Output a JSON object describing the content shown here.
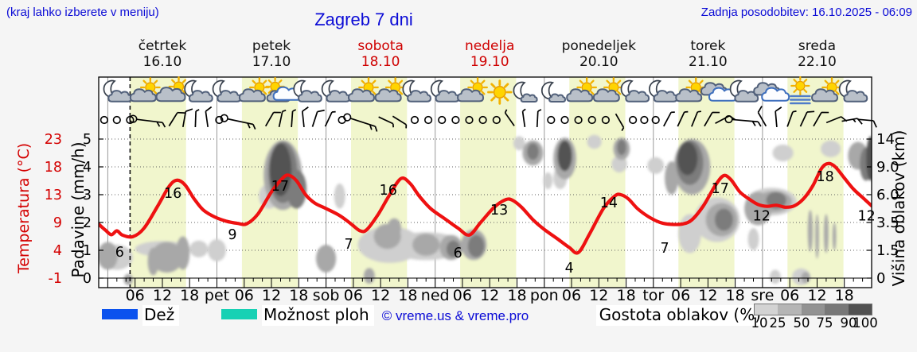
{
  "header": {
    "hint": "(kraj lahko izberete v meniju)",
    "title": "Zagreb 7 dni",
    "updated": "Zadnja posodobitev: 16.10.2025 - 06:09"
  },
  "days": [
    {
      "name": "četrtek",
      "date": "16.10",
      "red": false
    },
    {
      "name": "petek",
      "date": "17.10",
      "red": false
    },
    {
      "name": "sobota",
      "date": "18.10",
      "red": true
    },
    {
      "name": "nedelja",
      "date": "19.10",
      "red": true
    },
    {
      "name": "ponedeljek",
      "date": "20.10",
      "red": false
    },
    {
      "name": "torek",
      "date": "21.10",
      "red": false
    },
    {
      "name": "sreda",
      "date": "22.10",
      "red": false
    }
  ],
  "axes": {
    "temp": {
      "label": "Temperatura (°C)",
      "ticks": [
        "23",
        "18",
        "13",
        "9",
        "4",
        "-1"
      ],
      "color": "#d40000"
    },
    "precip": {
      "label": "Padavine (mm/h)",
      "ticks": [
        "5",
        "4",
        "3",
        "2",
        "1",
        "0"
      ]
    },
    "cloud_height": {
      "label": "Višina oblakov (km)",
      "ticks": [
        "14",
        "9.0",
        "6.0",
        "3.5",
        "1.5",
        "0"
      ]
    },
    "x": {
      "hour_labels": [
        "06",
        "12",
        "18"
      ],
      "day_abbr": [
        "pet",
        "sob",
        "ned",
        "pon",
        "tor",
        "sre"
      ]
    }
  },
  "legend": {
    "rain_label": "Dež",
    "rain_color": "#0b52ee",
    "showers_label": "Možnost ploh",
    "showers_color": "#17d1b4",
    "copyright": "© vreme.us & vreme.pro",
    "cloud_density_label": "Gostota oblakov (%)",
    "cloud_scale_labels": [
      "10",
      "25",
      "50",
      "75",
      "90",
      "100"
    ],
    "cloud_scale_colors": [
      "#d3d3d3",
      "#b5b5b5",
      "#929292",
      "#787878",
      "#515151"
    ]
  },
  "chart_data": {
    "type": "line",
    "title": "Zagreb 7 dni",
    "ylabel_left": "Padavine (mm/h) / Temperatura (°C)",
    "ylabel_right": "Višina oblakov (km)",
    "ylim": [
      0,
      5
    ],
    "x_hours_range": [
      -2,
      168
    ],
    "now_hour": 4.9,
    "daylight_bands": [
      [
        4.9,
        17.2
      ],
      [
        29.5,
        41.8
      ],
      [
        53.5,
        65.8
      ],
      [
        77.5,
        89.8
      ],
      [
        101.5,
        113.8
      ],
      [
        125.5,
        137.8
      ],
      [
        149.5,
        161.8
      ]
    ],
    "band_color": "#f1f6cd",
    "curve_color": "#ee1111",
    "series": [
      {
        "name": "temperatura",
        "points": [
          [
            -2,
            1.94
          ],
          [
            -0.5,
            1.72
          ],
          [
            0.8,
            1.56
          ],
          [
            2,
            1.7
          ],
          [
            3.2,
            1.55
          ],
          [
            5.5,
            1.49
          ],
          [
            8,
            1.8
          ],
          [
            11,
            2.6
          ],
          [
            13.5,
            3.3
          ],
          [
            15.2,
            3.52
          ],
          [
            17,
            3.35
          ],
          [
            19,
            2.85
          ],
          [
            21,
            2.45
          ],
          [
            23.5,
            2.2
          ],
          [
            26,
            2.05
          ],
          [
            28.5,
            1.97
          ],
          [
            30.5,
            1.95
          ],
          [
            33,
            2.3
          ],
          [
            36,
            3.1
          ],
          [
            38.5,
            3.6
          ],
          [
            39.8,
            3.7
          ],
          [
            41.5,
            3.5
          ],
          [
            43.5,
            3.0
          ],
          [
            45.5,
            2.7
          ],
          [
            48,
            2.5
          ],
          [
            51,
            2.25
          ],
          [
            53.5,
            1.95
          ],
          [
            55.5,
            1.7
          ],
          [
            57,
            1.75
          ],
          [
            59.5,
            2.3
          ],
          [
            62,
            3.0
          ],
          [
            64.5,
            3.58
          ],
          [
            66.5,
            3.4
          ],
          [
            68.5,
            2.95
          ],
          [
            71,
            2.5
          ],
          [
            74,
            2.15
          ],
          [
            77,
            1.8
          ],
          [
            79.5,
            1.55
          ],
          [
            82,
            2.0
          ],
          [
            85,
            2.55
          ],
          [
            87.5,
            2.82
          ],
          [
            89,
            2.8
          ],
          [
            91,
            2.55
          ],
          [
            93.5,
            2.1
          ],
          [
            96,
            1.75
          ],
          [
            99,
            1.4
          ],
          [
            101.5,
            1.1
          ],
          [
            103.5,
            0.92
          ],
          [
            106,
            1.6
          ],
          [
            109,
            2.5
          ],
          [
            111.5,
            2.95
          ],
          [
            112.8,
            3.0
          ],
          [
            114.5,
            2.85
          ],
          [
            116.5,
            2.5
          ],
          [
            119,
            2.2
          ],
          [
            121.5,
            2.0
          ],
          [
            124,
            1.93
          ],
          [
            126.5,
            1.95
          ],
          [
            128.5,
            2.1
          ],
          [
            131,
            2.6
          ],
          [
            133.5,
            3.3
          ],
          [
            135.4,
            3.68
          ],
          [
            137,
            3.55
          ],
          [
            139,
            3.1
          ],
          [
            141,
            2.85
          ],
          [
            143,
            2.65
          ],
          [
            145,
            2.58
          ],
          [
            147,
            2.62
          ],
          [
            149,
            2.55
          ],
          [
            151,
            2.6
          ],
          [
            153,
            2.85
          ],
          [
            155,
            3.3
          ],
          [
            157,
            3.95
          ],
          [
            158.5,
            4.12
          ],
          [
            160,
            4.0
          ],
          [
            162,
            3.6
          ],
          [
            164,
            3.2
          ],
          [
            166,
            2.9
          ],
          [
            168,
            2.6
          ]
        ]
      }
    ],
    "temp_point_labels": [
      {
        "h": 2.6,
        "v": 0.94,
        "t": "6"
      },
      {
        "h": 14.3,
        "v": 3.06,
        "t": "16"
      },
      {
        "h": 27.4,
        "v": 1.57,
        "t": "9"
      },
      {
        "h": 37.9,
        "v": 3.31,
        "t": "17"
      },
      {
        "h": 53.0,
        "v": 1.23,
        "t": "7"
      },
      {
        "h": 61.7,
        "v": 3.17,
        "t": "16"
      },
      {
        "h": 77.0,
        "v": 0.91,
        "t": "6"
      },
      {
        "h": 86.1,
        "v": 2.46,
        "t": "13"
      },
      {
        "h": 101.5,
        "v": 0.37,
        "t": "4"
      },
      {
        "h": 110.2,
        "v": 2.71,
        "t": "14"
      },
      {
        "h": 122.5,
        "v": 1.09,
        "t": "7"
      },
      {
        "h": 134.7,
        "v": 3.23,
        "t": "17"
      },
      {
        "h": 143.8,
        "v": 2.25,
        "t": "12"
      },
      {
        "h": 157.8,
        "v": 3.66,
        "t": "18"
      },
      {
        "h": 166.9,
        "v": 2.25,
        "t": "12"
      }
    ],
    "cloud_colors": {
      "l": "#cfcfcf",
      "m": "#a8a8a8",
      "d": "#7c7c7c",
      "x": "#525252"
    },
    "clouds": [
      [
        0,
        0.8,
        2.2,
        0.5,
        "m"
      ],
      [
        2,
        0.75,
        3.5,
        0.45,
        "l"
      ],
      [
        12,
        1.05,
        6,
        0.28,
        "l"
      ],
      [
        13,
        0.75,
        3.5,
        0.55,
        "m"
      ],
      [
        10,
        0.6,
        1.2,
        0.5,
        "m"
      ],
      [
        16.5,
        0.9,
        1.5,
        0.6,
        "m"
      ],
      [
        20,
        1.05,
        2,
        0.3,
        "l"
      ],
      [
        24,
        1.0,
        2,
        0.4,
        "l"
      ],
      [
        4.5,
        -0.05,
        1,
        0.2,
        "m"
      ],
      [
        38.5,
        3.7,
        4.2,
        1.25,
        "m"
      ],
      [
        38.5,
        3.8,
        3.2,
        1.1,
        "d"
      ],
      [
        38,
        3.9,
        2.4,
        0.95,
        "x"
      ],
      [
        41.5,
        3.2,
        2.2,
        0.7,
        "d"
      ],
      [
        35.5,
        2.95,
        2.3,
        0.45,
        "l"
      ],
      [
        48,
        0.7,
        2.2,
        0.5,
        "m"
      ],
      [
        51,
        2.95,
        1.2,
        0.45,
        "l"
      ],
      [
        62,
        1.2,
        7,
        0.65,
        "l"
      ],
      [
        70,
        1.15,
        8,
        0.5,
        "l"
      ],
      [
        61.5,
        1.5,
        3,
        0.45,
        "m"
      ],
      [
        63,
        1.8,
        1.5,
        0.35,
        "m"
      ],
      [
        70,
        1.2,
        3,
        0.4,
        "m"
      ],
      [
        75.5,
        1.1,
        2.5,
        0.45,
        "m"
      ],
      [
        76,
        1.05,
        1.5,
        0.3,
        "d"
      ],
      [
        80.5,
        1.2,
        2.8,
        0.55,
        "m"
      ],
      [
        81,
        1.15,
        1.8,
        0.4,
        "d"
      ],
      [
        57.5,
        0.08,
        1.2,
        0.28,
        "m"
      ],
      [
        90.5,
        4.85,
        1.3,
        0.25,
        "l"
      ],
      [
        93.5,
        4.5,
        2.3,
        0.45,
        "m"
      ],
      [
        93.5,
        4.55,
        1.3,
        0.3,
        "d"
      ],
      [
        100.5,
        4.3,
        2.5,
        0.75,
        "m"
      ],
      [
        100.5,
        4.4,
        1.6,
        0.55,
        "x"
      ],
      [
        99.5,
        3.6,
        1.5,
        0.4,
        "l"
      ],
      [
        96.8,
        3.5,
        1,
        0.3,
        "l"
      ],
      [
        107,
        4.9,
        1.6,
        0.25,
        "l"
      ],
      [
        113,
        4.65,
        1.8,
        0.4,
        "m"
      ],
      [
        113,
        4.7,
        1,
        0.28,
        "d"
      ],
      [
        112.5,
        4.1,
        1.7,
        0.3,
        "l"
      ],
      [
        120.5,
        4.05,
        1.8,
        0.3,
        "l"
      ],
      [
        128.5,
        4.0,
        4,
        1.0,
        "m"
      ],
      [
        128,
        4.15,
        3,
        0.8,
        "d"
      ],
      [
        127.5,
        4.3,
        2.2,
        0.6,
        "x"
      ],
      [
        124,
        3.6,
        1.5,
        0.6,
        "m"
      ],
      [
        134,
        2.1,
        5,
        0.8,
        "l"
      ],
      [
        135,
        2.1,
        3.5,
        0.6,
        "m"
      ],
      [
        135.5,
        2.1,
        2,
        0.4,
        "d"
      ],
      [
        128,
        1.6,
        2.5,
        0.7,
        "l"
      ],
      [
        142,
        1.4,
        1.2,
        0.4,
        "l"
      ],
      [
        143,
        2.5,
        3,
        0.6,
        "m"
      ],
      [
        146,
        2.75,
        5.5,
        0.5,
        "l"
      ],
      [
        146.5,
        2.75,
        4,
        0.38,
        "m"
      ],
      [
        147,
        2.8,
        2.2,
        0.3,
        "d"
      ],
      [
        148.5,
        4.5,
        2.3,
        0.3,
        "l"
      ],
      [
        154.5,
        1.7,
        0.55,
        0.75,
        "m"
      ],
      [
        156,
        1.5,
        0.4,
        0.8,
        "m"
      ],
      [
        158,
        1.6,
        0.5,
        0.7,
        "m"
      ],
      [
        159.8,
        1.5,
        0.4,
        0.5,
        "m"
      ],
      [
        159,
        4.65,
        2.2,
        0.3,
        "l"
      ],
      [
        165,
        4.4,
        2.2,
        0.5,
        "m"
      ],
      [
        166.8,
        4.1,
        1.4,
        0.6,
        "d"
      ],
      [
        167.8,
        4.3,
        1,
        0.8,
        "x"
      ],
      [
        152.5,
        0.05,
        2,
        0.3,
        "l"
      ],
      [
        153.5,
        0.02,
        1,
        0.2,
        "m"
      ],
      [
        146.8,
        0.05,
        1.2,
        0.25,
        "l"
      ]
    ],
    "weather_icons": [
      {
        "h": 1.8,
        "t": "mc"
      },
      {
        "h": 8.3,
        "t": "sc"
      },
      {
        "h": 14.2,
        "t": "cs"
      },
      {
        "h": 19.6,
        "t": "mc"
      },
      {
        "h": 25.8,
        "t": "mc"
      },
      {
        "h": 32.3,
        "t": "sc"
      },
      {
        "h": 38.2,
        "t": "scc"
      },
      {
        "h": 43.6,
        "t": "mc"
      },
      {
        "h": 49.8,
        "t": "mc"
      },
      {
        "h": 56.3,
        "t": "sc"
      },
      {
        "h": 62.2,
        "t": "sc"
      },
      {
        "h": 67.6,
        "t": "mc"
      },
      {
        "h": 73.8,
        "t": "mc"
      },
      {
        "h": 80.3,
        "t": "sc"
      },
      {
        "h": 86.2,
        "t": "s"
      },
      {
        "h": 91.6,
        "t": "mcs"
      },
      {
        "h": 97.8,
        "t": "mcs"
      },
      {
        "h": 104.3,
        "t": "sc"
      },
      {
        "h": 110.2,
        "t": "sc"
      },
      {
        "h": 115.6,
        "t": "mc"
      },
      {
        "h": 121.8,
        "t": "mc"
      },
      {
        "h": 128.3,
        "t": "sc"
      },
      {
        "h": 134.2,
        "t": "cc"
      },
      {
        "h": 139.6,
        "t": "mc"
      },
      {
        "h": 145.8,
        "t": "cc"
      },
      {
        "h": 152.3,
        "t": "sf"
      },
      {
        "h": 158.2,
        "t": "sc"
      },
      {
        "h": 163.6,
        "t": "mc"
      }
    ],
    "wind": [
      {
        "h": -0.8,
        "c": 1
      },
      {
        "h": 2,
        "c": 1
      },
      {
        "h": 4.9,
        "c": 1
      },
      {
        "h": 7.5,
        "cb": 1,
        "rot": 97
      },
      {
        "h": 14.3,
        "rot": 32,
        "f": [
          1
        ]
      },
      {
        "h": 16.8,
        "rot": 10,
        "f": [
          1
        ]
      },
      {
        "h": 19.3,
        "rot": 2,
        "f": [
          0.5
        ]
      },
      {
        "h": 21.8,
        "rot": -8,
        "f": [
          1
        ]
      },
      {
        "h": 24.5,
        "c": 1
      },
      {
        "h": 27.5,
        "cb": 1,
        "rot": 102
      },
      {
        "h": 35.5,
        "rot": 30,
        "f": [
          1
        ]
      },
      {
        "h": 38,
        "rot": 12,
        "f": [
          0.5
        ]
      },
      {
        "h": 40.5,
        "rot": 4,
        "f": [
          0.5
        ]
      },
      {
        "h": 43,
        "rot": -6,
        "f": [
          1
        ]
      },
      {
        "h": 45.5,
        "rot": 18,
        "f": [
          1
        ]
      },
      {
        "h": 48.5,
        "rot": 25,
        "f": [
          0.5
        ]
      },
      {
        "h": 51.5,
        "c": 1
      },
      {
        "h": 54.5,
        "cb": 1,
        "rot": 108
      },
      {
        "h": 61,
        "rot": 115,
        "f": [
          0.5
        ]
      },
      {
        "h": 64,
        "rot": 122,
        "f": [
          0.5
        ]
      },
      {
        "h": 67.5,
        "c": 1
      },
      {
        "h": 70.5,
        "c": 1
      },
      {
        "h": 73.5,
        "c": 1
      },
      {
        "h": 76.5,
        "c": 1
      },
      {
        "h": 79.5,
        "c": 1
      },
      {
        "h": 82.5,
        "c": 1
      },
      {
        "h": 85.5,
        "c": 1
      },
      {
        "h": 88.5,
        "rot": -35,
        "f": [
          0.5
        ]
      },
      {
        "h": 91.5,
        "rot": -8,
        "f": [
          0.5
        ]
      },
      {
        "h": 94.5,
        "rot": 3,
        "f": [
          0.5
        ]
      },
      {
        "h": 97.5,
        "c": 1
      },
      {
        "h": 100.5,
        "c": 1
      },
      {
        "h": 103.5,
        "c": 1
      },
      {
        "h": 106.5,
        "c": 1
      },
      {
        "h": 109.5,
        "c": 1
      },
      {
        "h": 112.5,
        "rot": 150,
        "f": [
          0.5
        ]
      },
      {
        "h": 115.5,
        "c": 1
      },
      {
        "h": 118,
        "c": 1
      },
      {
        "h": 120.5,
        "c": 1
      },
      {
        "h": 123,
        "rot": 28,
        "f": [
          0.5
        ]
      },
      {
        "h": 126,
        "rot": 25,
        "f": [
          0.5
        ]
      },
      {
        "h": 129,
        "rot": 22,
        "f": [
          0.5
        ]
      },
      {
        "h": 132,
        "rot": 30,
        "f": [
          1
        ]
      },
      {
        "h": 135,
        "rot": 62,
        "f": [
          1
        ]
      },
      {
        "h": 138.5,
        "cb": 1,
        "rot": 95
      },
      {
        "h": 144,
        "rot": -30,
        "f": [
          1
        ]
      },
      {
        "h": 147,
        "rot": -5,
        "f": [
          1
        ]
      },
      {
        "h": 150,
        "rot": 20,
        "f": [
          0.5
        ]
      },
      {
        "h": 153,
        "rot": 25,
        "f": [
          1
        ]
      },
      {
        "h": 156,
        "rot": 30,
        "f": [
          1
        ]
      },
      {
        "h": 159.5,
        "rot": 68,
        "f": [
          1
        ]
      },
      {
        "h": 163,
        "rot": 80,
        "f": [
          1,
          0.5
        ]
      },
      {
        "h": 166.5,
        "rot": 95,
        "f": [
          1
        ]
      }
    ]
  }
}
